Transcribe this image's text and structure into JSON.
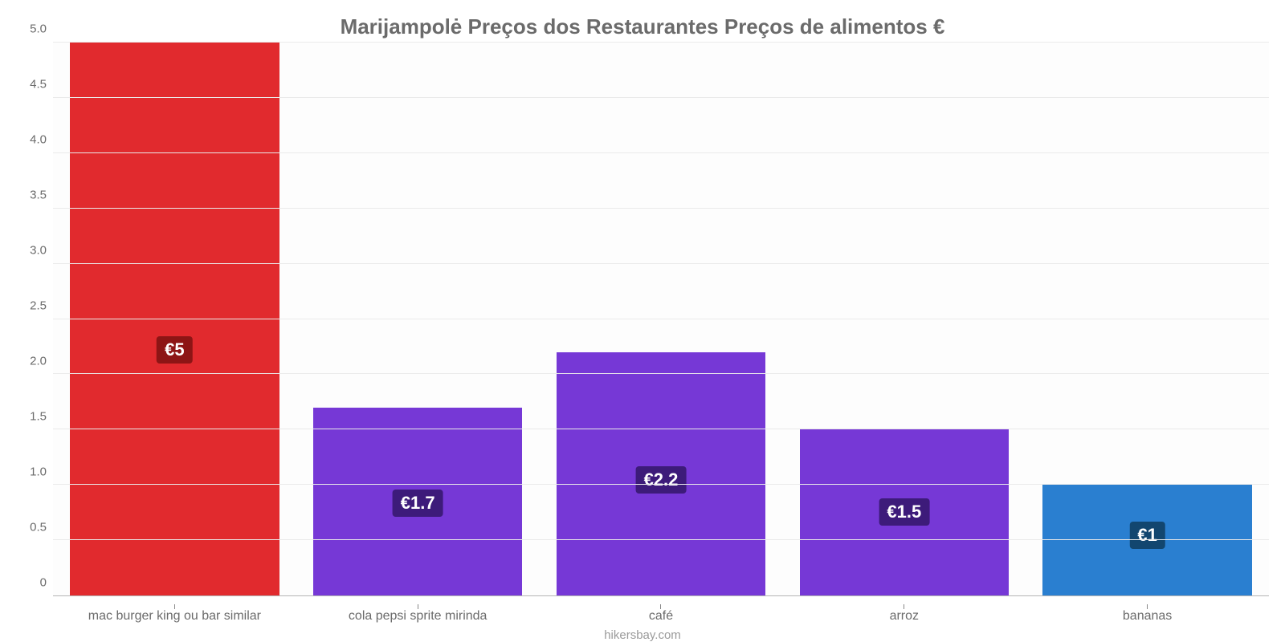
{
  "chart": {
    "type": "bar",
    "title": "Marijampolė Preços dos Restaurantes Preços de alimentos €",
    "title_fontsize": 26,
    "title_color": "#6b6b6b",
    "source": "hikersbay.com",
    "source_color": "#9a9a9a",
    "source_fontsize": 15,
    "background_color": "#fdfdfd",
    "plot_border_bottom_color": "#b5b5b5",
    "grid_color": "#eaeaea",
    "tick_label_color": "#6b6b6b",
    "tick_label_fontsize": 15,
    "x_label_fontsize": 16,
    "value_label_fontsize": 22,
    "value_label_text_color": "#ffffff",
    "value_label_radius": 4,
    "ylim": [
      0,
      5.0
    ],
    "yticks": [
      "0",
      "0.5",
      "1.0",
      "1.5",
      "2.0",
      "2.5",
      "3.0",
      "3.5",
      "4.0",
      "4.5",
      "5.0"
    ],
    "ytick_values": [
      0,
      0.5,
      1.0,
      1.5,
      2.0,
      2.5,
      3.0,
      3.5,
      4.0,
      4.5,
      5.0
    ],
    "bar_width_ratio": 0.86,
    "categories": [
      "mac burger king ou bar similar",
      "cola pepsi sprite mirinda",
      "café",
      "arroz",
      "bananas"
    ],
    "values": [
      5.0,
      1.7,
      2.2,
      1.5,
      1.0
    ],
    "value_labels": [
      "€5",
      "€1.7",
      "€2.2",
      "€1.5",
      "€1"
    ],
    "bar_colors": [
      "#e12a2e",
      "#7638d6",
      "#7638d6",
      "#7638d6",
      "#2a7fd0"
    ],
    "value_label_bg_colors": [
      "#8d1515",
      "#3d1b7a",
      "#3d1b7a",
      "#3d1b7a",
      "#12466f"
    ]
  }
}
